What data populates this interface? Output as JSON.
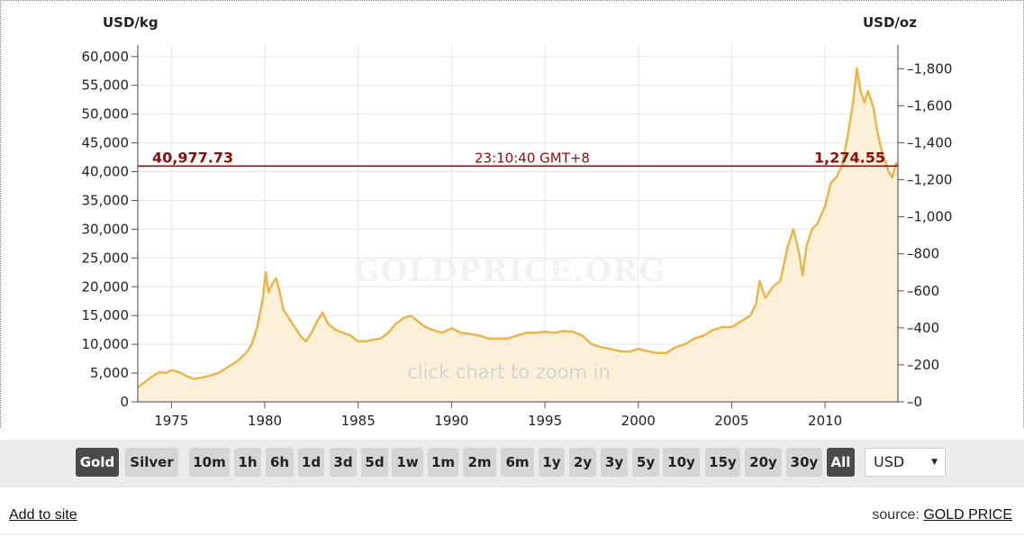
{
  "chart_data": {
    "type": "area",
    "left_axis_label": "USD/kg",
    "right_axis_label": "USD/oz",
    "left_ticks": [
      "0",
      "5,000",
      "10,000",
      "15,000",
      "20,000",
      "25,000",
      "30,000",
      "35,000",
      "40,000",
      "45,000",
      "50,000",
      "55,000",
      "60,000"
    ],
    "right_ticks": [
      "0",
      "200",
      "400",
      "600",
      "800",
      "1,000",
      "1,200",
      "1,400",
      "1,600",
      "1,800"
    ],
    "x_ticks": [
      "1975",
      "1980",
      "1985",
      "1990",
      "1995",
      "2000",
      "2005",
      "2010"
    ],
    "ylim_kg": [
      0,
      62000
    ],
    "ylim_oz": [
      0,
      1928
    ],
    "xlim": [
      1973.2,
      2013.9
    ],
    "grid": true,
    "watermark": "GOLDPRICE.ORG",
    "hint": "click chart to zoom in",
    "current": {
      "usd_kg": "40,977.73",
      "time": "23:10:40 GMT+8",
      "usd_oz": "1,274.55",
      "value_kg": 40977.73
    },
    "series": [
      {
        "line_color": "#e8b64c",
        "fill_color": "#fcf1d8",
        "x": [
          1973.2,
          1973.6,
          1974.0,
          1974.4,
          1974.7,
          1975.0,
          1975.4,
          1975.8,
          1976.2,
          1976.6,
          1977.0,
          1977.5,
          1978.0,
          1978.5,
          1979.0,
          1979.3,
          1979.6,
          1979.9,
          1980.05,
          1980.2,
          1980.4,
          1980.6,
          1980.8,
          1981.0,
          1981.3,
          1981.6,
          1981.9,
          1982.2,
          1982.5,
          1982.8,
          1983.1,
          1983.4,
          1983.8,
          1984.2,
          1984.6,
          1985.0,
          1985.4,
          1985.8,
          1986.2,
          1986.6,
          1987.0,
          1987.4,
          1987.8,
          1988.2,
          1988.6,
          1989.0,
          1989.5,
          1990.0,
          1990.5,
          1991.0,
          1991.5,
          1992.0,
          1992.5,
          1993.0,
          1993.5,
          1994.0,
          1994.5,
          1995.0,
          1995.5,
          1996.0,
          1996.5,
          1997.0,
          1997.5,
          1998.0,
          1998.5,
          1999.0,
          1999.5,
          2000.0,
          2000.5,
          2001.0,
          2001.5,
          2002.0,
          2002.5,
          2003.0,
          2003.5,
          2004.0,
          2004.5,
          2005.0,
          2005.5,
          2006.0,
          2006.3,
          2006.5,
          2006.8,
          2007.2,
          2007.6,
          2008.0,
          2008.3,
          2008.6,
          2008.8,
          2009.0,
          2009.3,
          2009.6,
          2010.0,
          2010.3,
          2010.6,
          2010.9,
          2011.2,
          2011.5,
          2011.7,
          2011.9,
          2012.1,
          2012.3,
          2012.6,
          2012.8,
          2013.0,
          2013.2,
          2013.4,
          2013.6,
          2013.8,
          2013.9
        ],
        "y": [
          2500,
          3500,
          4500,
          5200,
          5000,
          5500,
          5200,
          4500,
          4000,
          4200,
          4500,
          5000,
          6000,
          7000,
          8500,
          10000,
          13000,
          18000,
          22500,
          19000,
          20500,
          21500,
          19000,
          16000,
          14500,
          13000,
          11500,
          10500,
          12000,
          14000,
          15500,
          13500,
          12500,
          12000,
          11500,
          10500,
          10500,
          10800,
          11000,
          12000,
          13500,
          14500,
          15000,
          14000,
          13000,
          12500,
          12000,
          12800,
          12000,
          11800,
          11500,
          11000,
          11000,
          11000,
          11500,
          12000,
          12000,
          12200,
          12000,
          12300,
          12200,
          11500,
          10000,
          9500,
          9200,
          8800,
          8700,
          9200,
          8800,
          8500,
          8500,
          9500,
          10000,
          11000,
          11500,
          12500,
          13000,
          13000,
          14000,
          15000,
          17000,
          21000,
          18000,
          20000,
          21000,
          27000,
          30000,
          26000,
          22000,
          27000,
          30000,
          31000,
          34000,
          38000,
          39000,
          41000,
          46000,
          52000,
          58000,
          54000,
          52000,
          54000,
          51000,
          47000,
          44000,
          42000,
          40000,
          39000,
          41500,
          40977.73
        ]
      }
    ]
  },
  "toolbar": {
    "metals": [
      "Gold",
      "Silver"
    ],
    "metal_active": "Gold",
    "ranges": [
      "10m",
      "1h",
      "6h",
      "1d",
      "3d",
      "5d",
      "1w",
      "1m",
      "2m",
      "6m",
      "1y",
      "2y",
      "3y",
      "5y",
      "10y",
      "15y",
      "20y",
      "30y",
      "All"
    ],
    "range_active": "All",
    "currency": "USD"
  },
  "footer": {
    "add_to_site": "Add to site",
    "source_prefix": "source:",
    "source_link": "GOLD PRICE"
  }
}
